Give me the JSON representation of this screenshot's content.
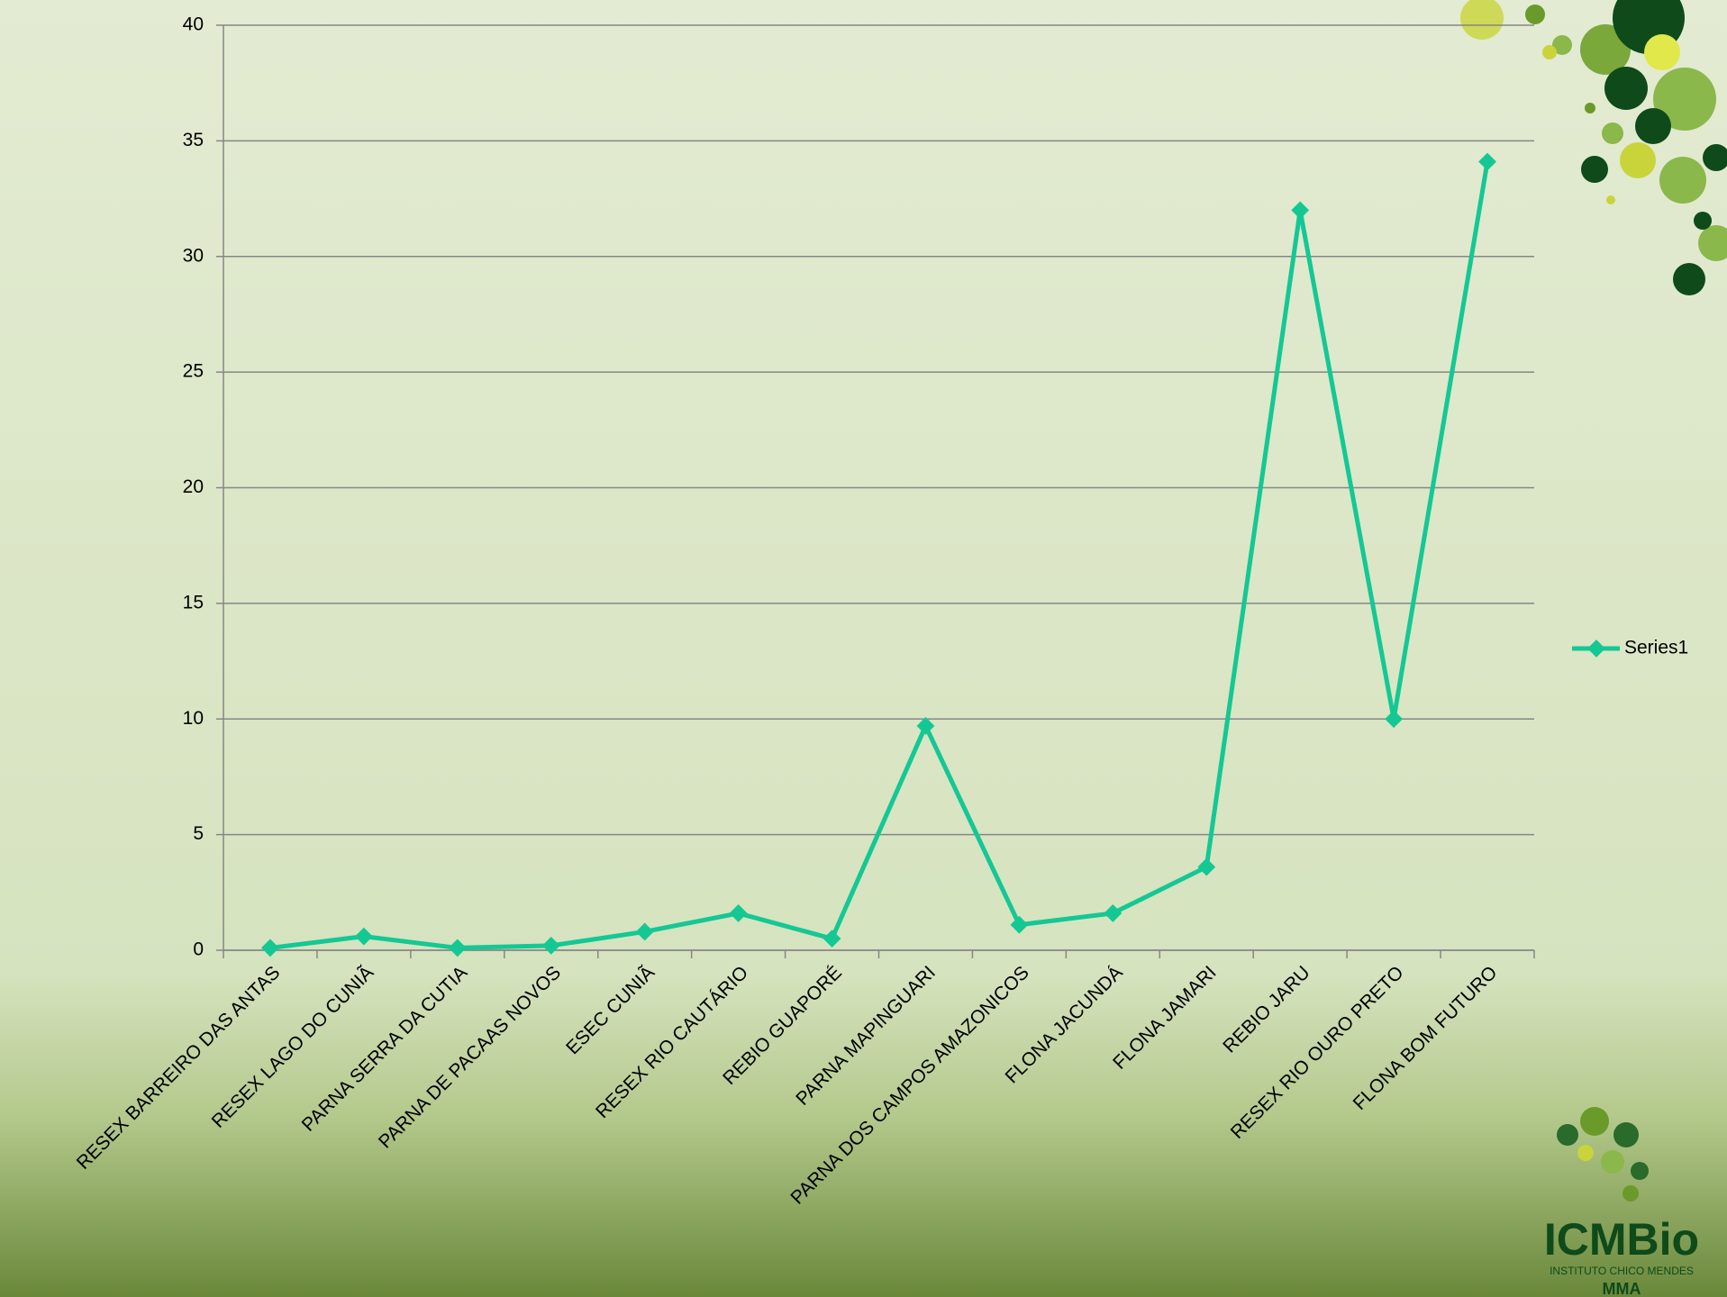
{
  "chart_data": {
    "type": "line",
    "categories": [
      "RESEX BARREIRO DAS ANTAS",
      "RESEX LAGO DO CUNIÃ",
      "PARNA SERRA DA CUTIA",
      "PARNA DE PACAAS NOVOS",
      "ESEC CUNIÃ",
      "RESEX RIO CAUTÁRIO",
      "REBIO GUAPORÉ",
      "PARNA MAPINGUARI",
      "PARNA DOS CAMPOS AMAZONICOS",
      "FLONA JACUNDÁ",
      "FLONA JAMARI",
      "REBIO JARU",
      "RESEX RIO OURO PRETO",
      "FLONA BOM FUTURO"
    ],
    "series": [
      {
        "name": "Series1",
        "color": "#14c894",
        "values": [
          0.1,
          0.6,
          0.1,
          0.2,
          0.8,
          1.6,
          0.5,
          9.7,
          1.1,
          1.6,
          3.6,
          32,
          10,
          34.1
        ]
      }
    ],
    "ylim": [
      0,
      40
    ],
    "yticks": [
      0,
      5,
      10,
      15,
      20,
      25,
      30,
      35,
      40
    ],
    "grid": true,
    "legend": "right"
  },
  "logo": {
    "name": "ICMBio",
    "subtitle": "INSTITUTO CHICO MENDES",
    "ministry": "MMA"
  }
}
